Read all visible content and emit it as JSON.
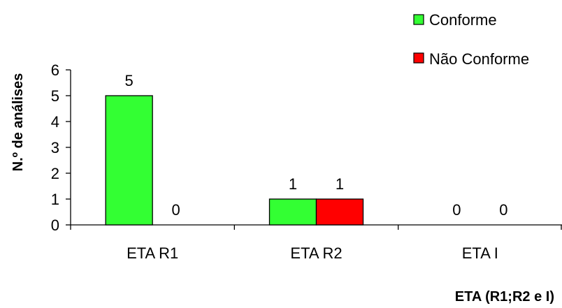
{
  "chart_data": {
    "type": "bar",
    "categories": [
      "ETA R1",
      "ETA R2",
      "ETA I"
    ],
    "series": [
      {
        "name": "Conforme",
        "values": [
          5,
          1,
          0
        ],
        "color": "#33ff33"
      },
      {
        "name": "Não Conforme",
        "values": [
          0,
          1,
          0
        ],
        "color": "#ff0000"
      }
    ],
    "data_labels": [
      [
        "5",
        "1",
        "0"
      ],
      [
        "0",
        "1",
        "0"
      ]
    ],
    "xlabel": "ETA (R1;R2 e I)",
    "ylabel": "N.º de análises",
    "ylim": [
      0,
      6
    ],
    "yticks": [
      "0",
      "1",
      "2",
      "3",
      "4",
      "5",
      "6"
    ],
    "grid": false,
    "legend_position": "top-right"
  }
}
